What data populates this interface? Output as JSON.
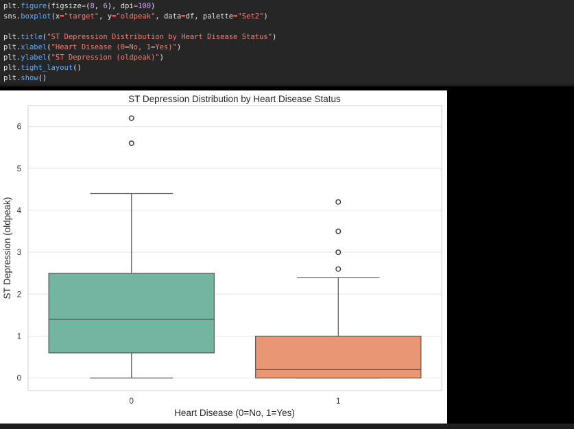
{
  "code": {
    "lines": [
      [
        [
          "plt.",
          "var"
        ],
        [
          "figure",
          "fn"
        ],
        [
          "(figsize",
          "var"
        ],
        [
          "=",
          "eq"
        ],
        [
          "(",
          "var"
        ],
        [
          "8",
          "num"
        ],
        [
          ", ",
          "var"
        ],
        [
          "6",
          "num"
        ],
        [
          "), dpi",
          "var"
        ],
        [
          "=",
          "eq"
        ],
        [
          "100",
          "num"
        ],
        [
          ")",
          "var"
        ]
      ],
      [
        [
          "sns.",
          "var"
        ],
        [
          "boxplot",
          "fn"
        ],
        [
          "(x",
          "var"
        ],
        [
          "=",
          "eq"
        ],
        [
          "\"target\"",
          "str"
        ],
        [
          ", y",
          "var"
        ],
        [
          "=",
          "eq"
        ],
        [
          "\"oldpeak\"",
          "str"
        ],
        [
          ", data",
          "var"
        ],
        [
          "=",
          "eq"
        ],
        [
          "df, palette",
          "var"
        ],
        [
          "=",
          "eq"
        ],
        [
          "\"Set2\"",
          "str"
        ],
        [
          ")",
          "var"
        ]
      ],
      [],
      [
        [
          "plt.",
          "var"
        ],
        [
          "title",
          "fn"
        ],
        [
          "(",
          "var"
        ],
        [
          "\"ST Depression Distribution by Heart Disease Status\"",
          "str"
        ],
        [
          ")",
          "var"
        ]
      ],
      [
        [
          "plt.",
          "var"
        ],
        [
          "xlabel",
          "fn"
        ],
        [
          "(",
          "var"
        ],
        [
          "\"Heart Disease (0=No, 1=Yes)\"",
          "str"
        ],
        [
          ")",
          "var"
        ]
      ],
      [
        [
          "plt.",
          "var"
        ],
        [
          "ylabel",
          "fn"
        ],
        [
          "(",
          "var"
        ],
        [
          "\"ST Depression (oldpeak)\"",
          "str"
        ],
        [
          ")",
          "var"
        ]
      ],
      [
        [
          "plt.",
          "var"
        ],
        [
          "tight_layout",
          "fn"
        ],
        [
          "()",
          "var"
        ]
      ],
      [
        [
          "plt.",
          "var"
        ],
        [
          "show",
          "fn"
        ],
        [
          "()",
          "var"
        ]
      ]
    ]
  },
  "colors": {
    "box_0": "#72b6a1",
    "box_1": "#e99675",
    "grid": "#e6e6e6",
    "line": "#555555"
  },
  "chart_data": {
    "type": "box",
    "title": "ST Depression Distribution by Heart Disease Status",
    "xlabel": "Heart Disease (0=No, 1=Yes)",
    "ylabel": "ST Depression (oldpeak)",
    "categories": [
      "0",
      "1"
    ],
    "ylim": [
      -0.3,
      6.5
    ],
    "yticks": [
      0,
      1,
      2,
      3,
      4,
      5,
      6
    ],
    "grid": true,
    "boxes": [
      {
        "category": "0",
        "whisker_low": 0,
        "q1": 0.6,
        "median": 1.4,
        "q3": 2.5,
        "whisker_high": 4.4,
        "outliers": [
          5.6,
          6.2
        ]
      },
      {
        "category": "1",
        "whisker_low": 0,
        "q1": 0,
        "median": 0.2,
        "q3": 1.0,
        "whisker_high": 2.4,
        "outliers": [
          2.6,
          3.0,
          3.5,
          4.2
        ]
      }
    ]
  }
}
